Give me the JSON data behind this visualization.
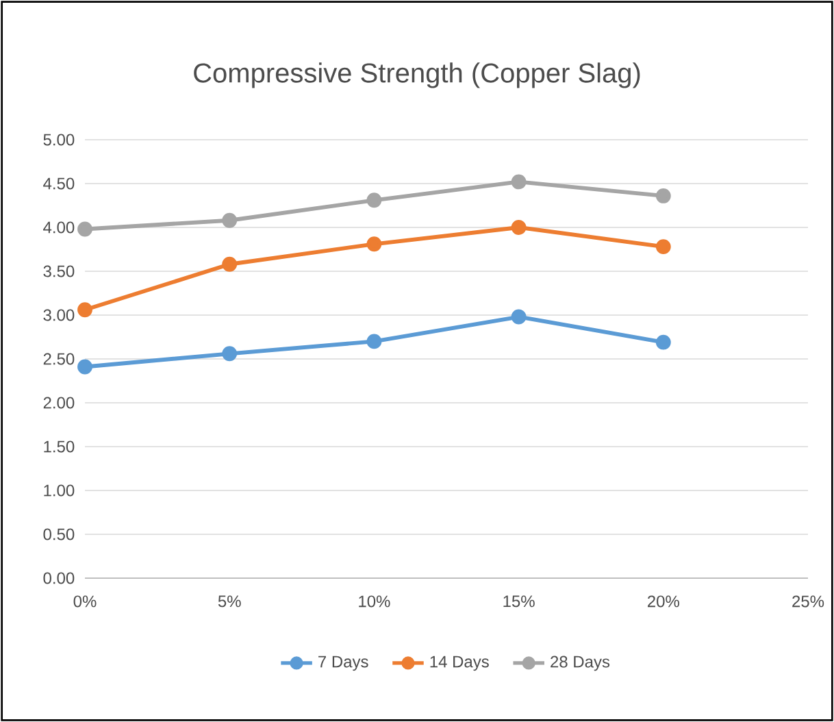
{
  "chart_data": {
    "type": "line",
    "title": "Compressive Strength (Copper Slag)",
    "x": [
      0,
      5,
      10,
      15,
      20
    ],
    "series": [
      {
        "name": "7 Days",
        "color": "#5b9bd5",
        "values": [
          2.41,
          2.56,
          2.7,
          2.98,
          2.69
        ]
      },
      {
        "name": "14 Days",
        "color": "#ed7d31",
        "values": [
          3.06,
          3.58,
          3.81,
          4.0,
          3.78
        ]
      },
      {
        "name": "28 Days",
        "color": "#a5a5a5",
        "values": [
          3.98,
          4.08,
          4.31,
          4.52,
          4.36
        ]
      }
    ],
    "xlim": [
      0,
      25
    ],
    "xticks": [
      {
        "value": 0,
        "label": "0%"
      },
      {
        "value": 5,
        "label": "5%"
      },
      {
        "value": 10,
        "label": "10%"
      },
      {
        "value": 15,
        "label": "15%"
      },
      {
        "value": 20,
        "label": "20%"
      },
      {
        "value": 25,
        "label": "25%"
      }
    ],
    "ylim": [
      0,
      5
    ],
    "yticks": [
      {
        "value": 0,
        "label": "0.00"
      },
      {
        "value": 0.5,
        "label": "0.50"
      },
      {
        "value": 1,
        "label": "1.00"
      },
      {
        "value": 1.5,
        "label": "1.50"
      },
      {
        "value": 2,
        "label": "2.00"
      },
      {
        "value": 2.5,
        "label": "2.50"
      },
      {
        "value": 3,
        "label": "3.00"
      },
      {
        "value": 3.5,
        "label": "3.50"
      },
      {
        "value": 4,
        "label": "4.00"
      },
      {
        "value": 4.5,
        "label": "4.50"
      },
      {
        "value": 5,
        "label": "5.00"
      }
    ],
    "grid": "y",
    "legend": "bottom",
    "marker": "circle",
    "line_style": "solid"
  }
}
